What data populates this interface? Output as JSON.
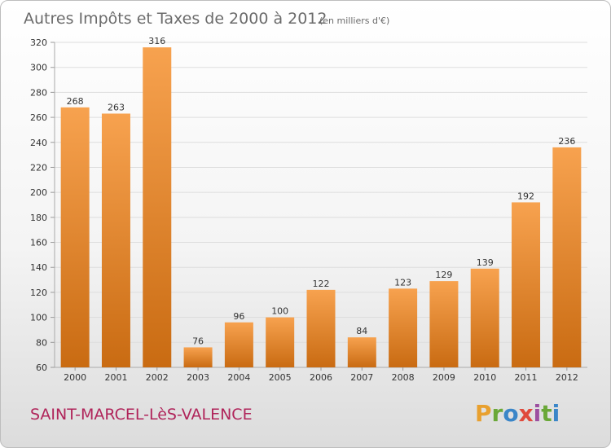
{
  "chart_data": {
    "type": "bar",
    "title": "Autres Impôts et Taxes de 2000 à 2012",
    "subtitle": "(en milliers d'€)",
    "categories": [
      "2000",
      "2001",
      "2002",
      "2003",
      "2004",
      "2005",
      "2006",
      "2007",
      "2008",
      "2009",
      "2010",
      "2011",
      "2012"
    ],
    "values": [
      268,
      263,
      316,
      76,
      96,
      100,
      122,
      84,
      123,
      129,
      139,
      192,
      236
    ],
    "ylim": [
      60,
      320
    ],
    "yticks": [
      60,
      80,
      100,
      120,
      140,
      160,
      180,
      200,
      220,
      240,
      260,
      280,
      300,
      320
    ],
    "grid": true,
    "bar_color_light": "#f7a24f",
    "bar_color_dark": "#c96b12"
  },
  "footer": {
    "place_name": "SAINT-MARCEL-LèS-VALENCE",
    "logo_text": "Proxiti"
  },
  "colors": {
    "logo_letters": [
      "#e8a02f",
      "#6aa838",
      "#3a86c8",
      "#e04a3c",
      "#9c4ea0",
      "#6aa838",
      "#3a86c8"
    ]
  }
}
